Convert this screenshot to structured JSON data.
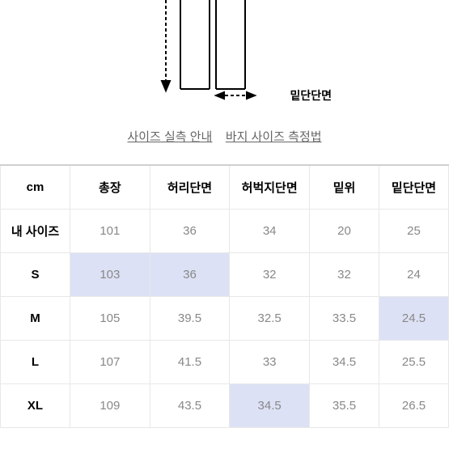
{
  "diagram": {
    "hem_label": "밑단단면"
  },
  "links": {
    "guide": "사이즈 실측 안내",
    "method": "바지 사이즈 측정법"
  },
  "table": {
    "unit_label": "cm",
    "columns": [
      "총장",
      "허리단면",
      "허벅지단면",
      "밑위",
      "밑단단면"
    ],
    "rows": [
      {
        "label": "내 사이즈",
        "values": [
          "101",
          "36",
          "34",
          "20",
          "25"
        ],
        "highlight": []
      },
      {
        "label": "S",
        "values": [
          "103",
          "36",
          "32",
          "32",
          "24"
        ],
        "highlight": [
          0,
          1
        ]
      },
      {
        "label": "M",
        "values": [
          "105",
          "39.5",
          "32.5",
          "33.5",
          "24.5"
        ],
        "highlight": [
          4
        ]
      },
      {
        "label": "L",
        "values": [
          "107",
          "41.5",
          "33",
          "34.5",
          "25.5"
        ],
        "highlight": []
      },
      {
        "label": "XL",
        "values": [
          "109",
          "43.5",
          "34.5",
          "35.5",
          "26.5"
        ],
        "highlight": [
          2
        ]
      }
    ],
    "colors": {
      "highlight_bg": "#dde1f5",
      "border": "#e8e8e8",
      "header_border_top": "#d0d0d0",
      "text_value": "#888888",
      "text_header": "#000000"
    }
  }
}
